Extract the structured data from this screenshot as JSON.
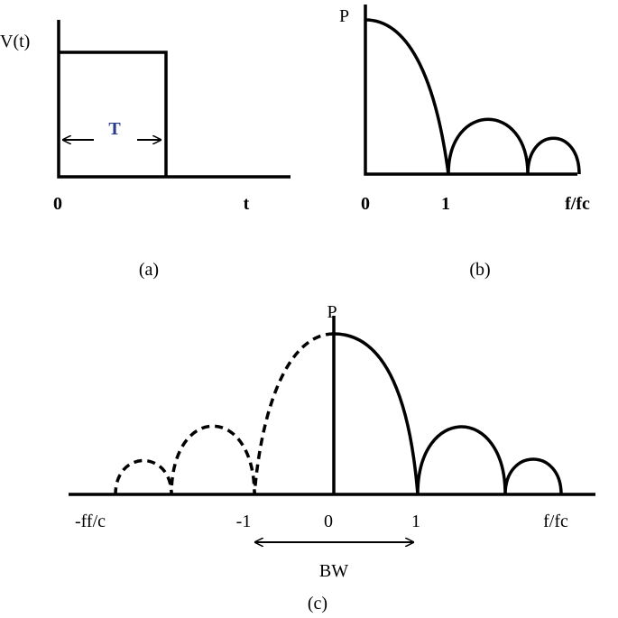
{
  "panels": {
    "a": {
      "y_label": "V(t)",
      "pulse_label": "T",
      "origin": "0",
      "x_label": "t",
      "caption": "(a)"
    },
    "b": {
      "y_label": "P",
      "origin": "0",
      "tick": "1",
      "x_label": "f/fc",
      "caption": "(b)"
    },
    "c": {
      "y_label": "P",
      "left_label": "-ff/c",
      "tick_neg": "-1",
      "origin": "0",
      "tick_pos": "1",
      "x_label": "f/fc",
      "bandwidth": "BW",
      "caption": "(c)"
    }
  }
}
